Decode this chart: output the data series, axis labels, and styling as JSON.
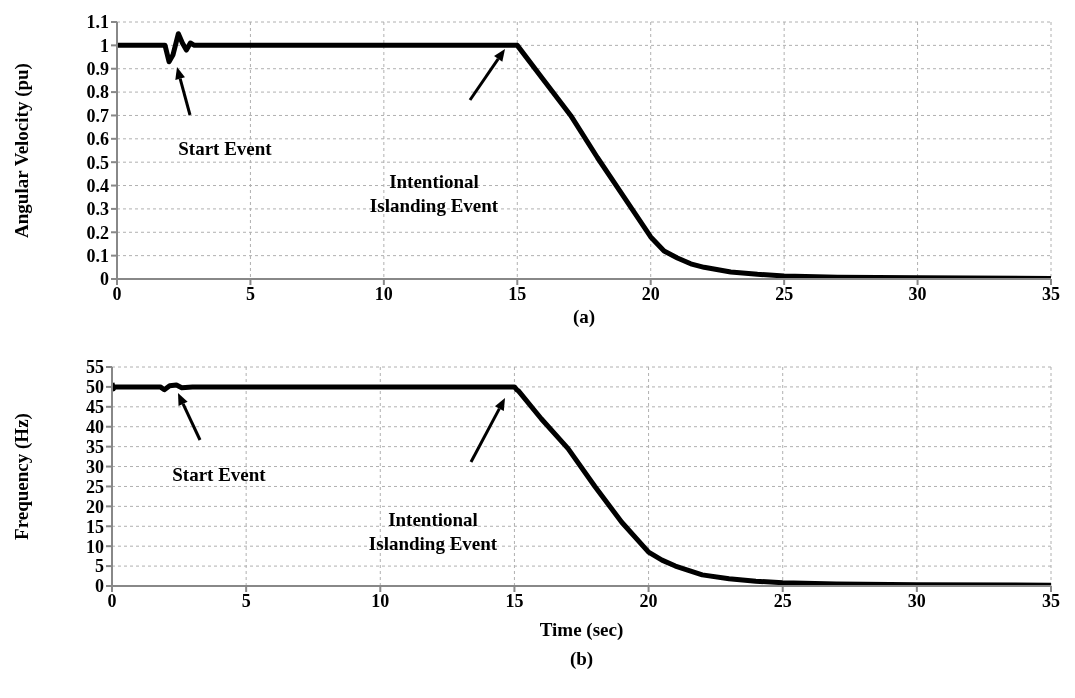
{
  "chart_data": [
    {
      "type": "line",
      "ylabel": "Angular Velocity (pu)",
      "x": [
        0,
        1.8,
        1.95,
        2.1,
        2.3,
        2.45,
        2.6,
        2.75,
        2.9,
        3.1,
        3.3,
        5,
        10,
        15,
        16,
        17,
        18,
        19,
        20,
        20.5,
        21,
        21.5,
        22,
        23,
        24,
        25,
        27,
        30,
        35
      ],
      "series": [
        {
          "color": "#000000",
          "values": [
            1,
            1,
            0.93,
            0.96,
            1.05,
            1.01,
            0.98,
            1.01,
            1.0,
            1.0,
            1,
            1,
            1,
            1,
            0.85,
            0.7,
            0.52,
            0.35,
            0.18,
            0.12,
            0.09,
            0.065,
            0.05,
            0.03,
            0.02,
            0.013,
            0.008,
            0.005,
            0.002
          ]
        }
      ],
      "xlim": [
        0,
        35
      ],
      "xticks": [
        0,
        5,
        10,
        15,
        20,
        25,
        30,
        35
      ],
      "ylim": [
        0,
        1.1
      ],
      "yticks": [
        0,
        0.1,
        0.2,
        0.3,
        0.4,
        0.5,
        0.6,
        0.7,
        0.8,
        0.9,
        1,
        1.1
      ],
      "grid": true,
      "legend": false,
      "marker": "none",
      "line_style": "solid",
      "annotations": [
        "Start Event",
        "Intentional\nIslanding Event",
        "(a)"
      ]
    },
    {
      "type": "line",
      "xlabel": "Time (sec)",
      "ylabel": "Frequency (Hz)",
      "x": [
        0,
        0.05,
        0.1,
        0.3,
        1.8,
        1.95,
        2.15,
        2.4,
        2.6,
        3,
        10,
        15,
        15.1,
        15.15,
        16,
        17,
        18,
        19,
        20,
        20.5,
        21,
        22,
        23,
        24,
        25,
        27,
        30,
        35
      ],
      "series": [
        {
          "color": "#000000",
          "values": [
            51,
            49.5,
            50,
            50,
            50,
            49.3,
            50.3,
            50.5,
            49.8,
            50,
            50,
            50,
            49.2,
            49,
            42,
            34.5,
            25,
            16,
            8.5,
            6.5,
            5,
            2.8,
            1.8,
            1.2,
            0.8,
            0.5,
            0.3,
            0.2
          ]
        }
      ],
      "xlim": [
        0,
        35
      ],
      "xticks": [
        0,
        5,
        10,
        15,
        20,
        25,
        30,
        35
      ],
      "ylim": [
        0,
        55
      ],
      "yticks": [
        0,
        5,
        10,
        15,
        20,
        25,
        30,
        35,
        40,
        45,
        50,
        55
      ],
      "grid": true,
      "legend": false,
      "marker": "none",
      "line_style": "solid",
      "annotations": [
        "Start Event",
        "Intentional\nIslanding Event",
        "(b)"
      ]
    }
  ]
}
